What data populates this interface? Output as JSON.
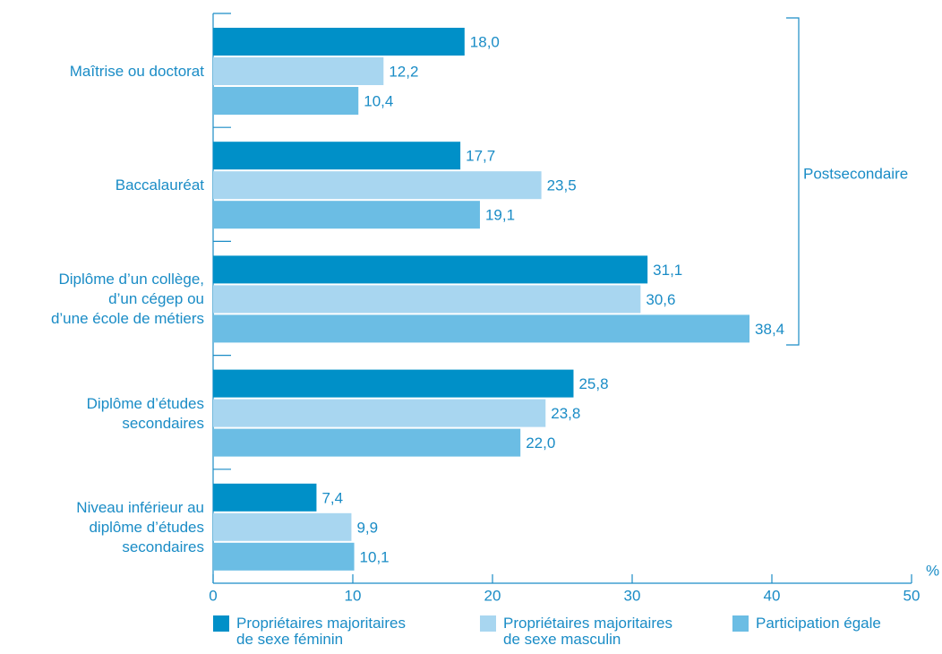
{
  "chart_data": {
    "type": "bar",
    "orientation": "horizontal",
    "categories": [
      "Maîtrise ou doctorat",
      "Baccalauréat",
      "Diplôme d’un collège,\nd’un cégep ou\nd’une école de métiers",
      "Diplôme d’études\nsecondaires",
      "Niveau inférieur au\ndiplôme d’études\nsecondaires"
    ],
    "series": [
      {
        "name": "Propriétaires majoritaires\nde sexe féminin",
        "color": "#0090c8",
        "values": [
          18.0,
          17.7,
          31.1,
          25.8,
          7.4
        ],
        "value_labels": [
          "18,0",
          "17,7",
          "31,1",
          "25,8",
          "7,4"
        ]
      },
      {
        "name": "Propriétaires majoritaires\nde sexe masculin",
        "color": "#a8d6f0",
        "values": [
          12.2,
          23.5,
          30.6,
          23.8,
          9.9
        ],
        "value_labels": [
          "12,2",
          "23,5",
          "30,6",
          "23,8",
          "9,9"
        ]
      },
      {
        "name": "Participation égale",
        "color": "#6bbde4",
        "values": [
          10.4,
          19.1,
          38.4,
          22.0,
          10.1
        ],
        "value_labels": [
          "10,4",
          "19,1",
          "38,4",
          "22,0",
          "10,1"
        ]
      }
    ],
    "xlim": [
      0,
      50
    ],
    "xticks": [
      0,
      10,
      20,
      30,
      40,
      50
    ],
    "x_unit": "%",
    "annotation": "Postsecondaire"
  }
}
